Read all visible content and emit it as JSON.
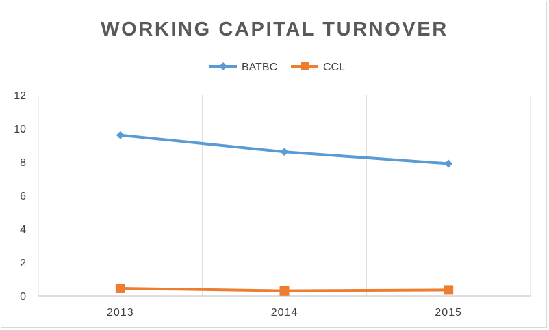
{
  "chart_data": {
    "type": "line",
    "title": "WORKING CAPITAL TURNOVER",
    "categories": [
      "2013",
      "2014",
      "2015"
    ],
    "series": [
      {
        "name": "BATBC",
        "values": [
          9.6,
          8.6,
          7.9
        ],
        "color": "#5b9bd5",
        "marker": "diamond"
      },
      {
        "name": "CCL",
        "values": [
          0.45,
          0.3,
          0.35
        ],
        "color": "#ed7d31",
        "marker": "square"
      }
    ],
    "ylim": [
      0,
      12
    ],
    "yticks": [
      0,
      2,
      4,
      6,
      8,
      10,
      12
    ],
    "grid": "vertical",
    "legend": "top-center",
    "xlabel": "",
    "ylabel": ""
  }
}
